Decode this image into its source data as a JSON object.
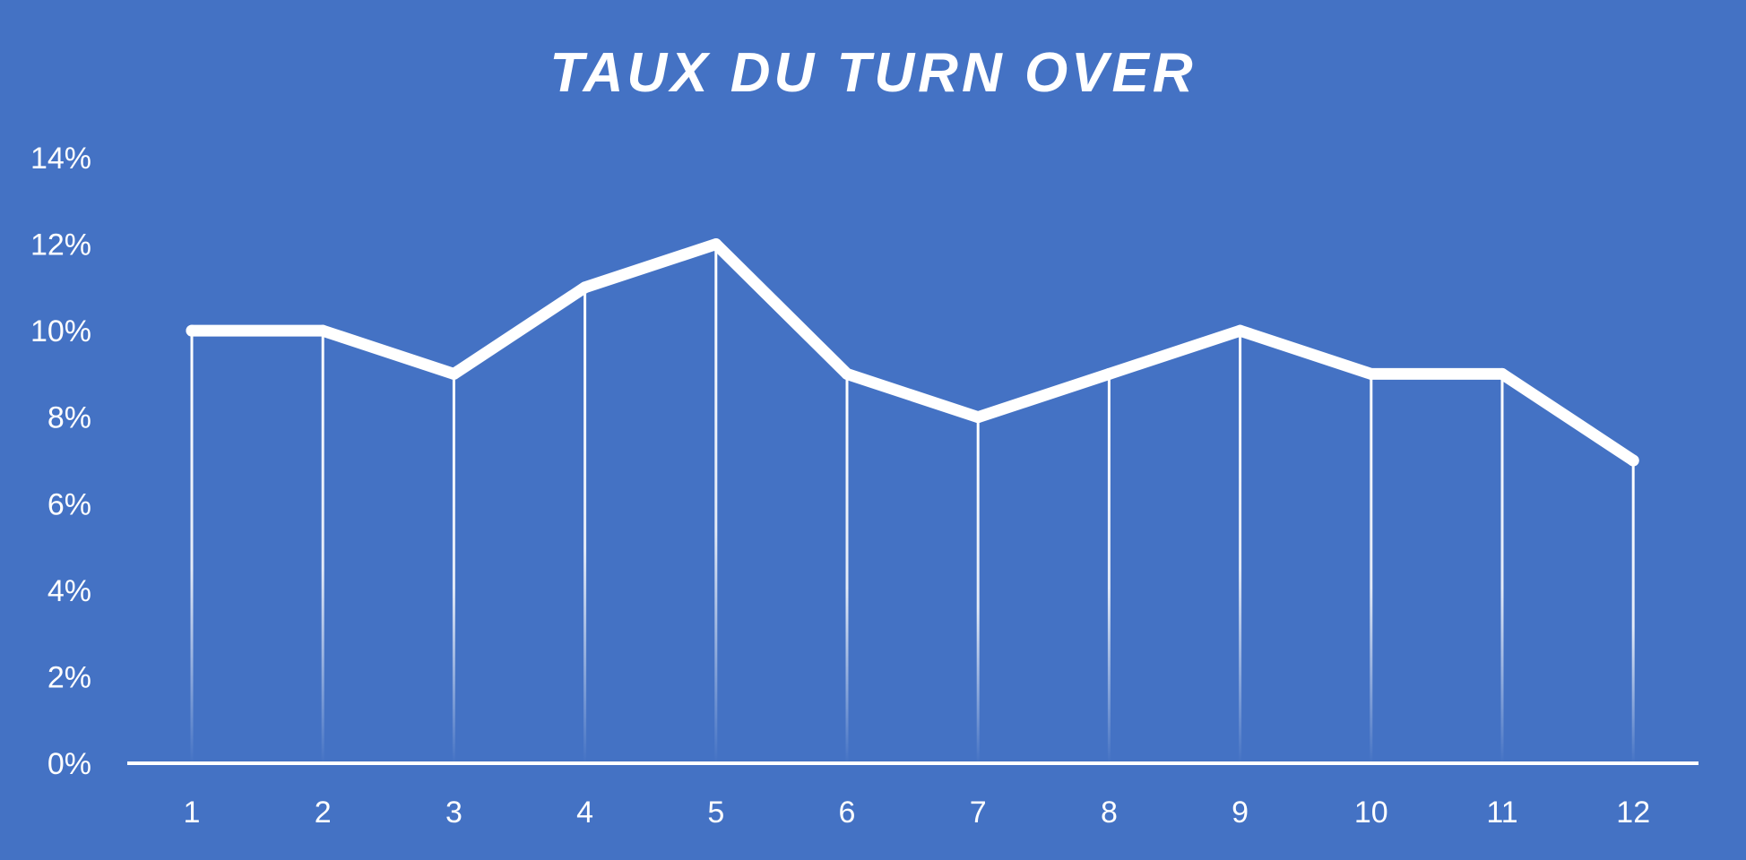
{
  "chart_data": {
    "type": "line",
    "title": "TAUX DU TURN OVER",
    "categories": [
      "1",
      "2",
      "3",
      "4",
      "5",
      "6",
      "7",
      "8",
      "9",
      "10",
      "11",
      "12"
    ],
    "series": [
      {
        "values": [
          0.1,
          0.1,
          0.09,
          0.11,
          0.12,
          0.09,
          0.08,
          0.09,
          0.1,
          0.09,
          0.09,
          0.07
        ]
      }
    ],
    "yticks": [
      "0%",
      "2%",
      "4%",
      "6%",
      "8%",
      "10%",
      "12%",
      "14%"
    ],
    "ylim": [
      0,
      0.14
    ],
    "xlabel": "",
    "ylabel": "",
    "grid": false,
    "drop_lines": true,
    "legend": "none"
  },
  "colors": {
    "background": "#4472C4",
    "line": "#FFFFFF",
    "text": "#FFFFFF",
    "axis": "#FFFFFF"
  }
}
